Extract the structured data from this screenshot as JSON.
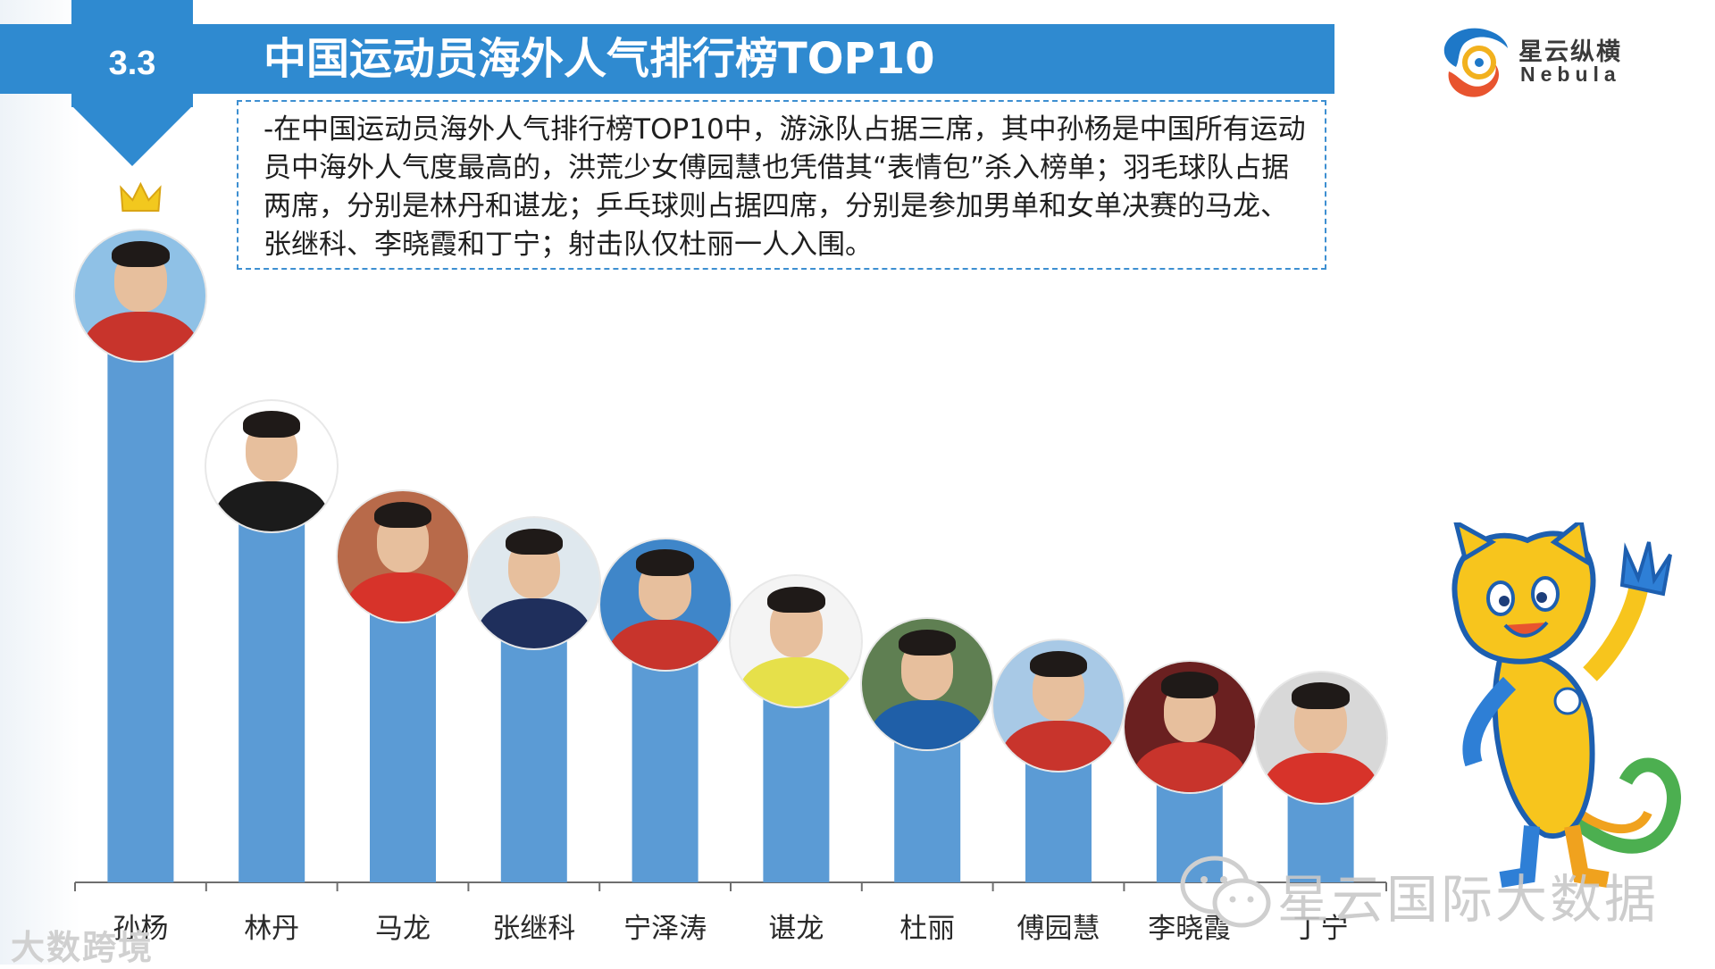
{
  "section": {
    "number": "3.3"
  },
  "title": "中国运动员海外人气排行榜TOP10",
  "description": "-在中国运动员海外人气排行榜TOP10中，游泳队占据三席，其中孙杨是中国所有运动员中海外人气度最高的，洪荒少女傅园慧也凭借其“表情包”杀入榜单；羽毛球队占据两席，分别是林丹和谌龙；乒乓球则占据四席，分别是参加男单和女单决赛的马龙、张继科、李晓霞和丁宁；射击队仅杜丽一人入围。",
  "logo": {
    "cn": "星云纵横",
    "en": "Nebula"
  },
  "watermark": {
    "main": "星云国际大数据",
    "corner": "大数跨境"
  },
  "colors": {
    "primary": "#2f8ad0",
    "bar": "#5b9bd5",
    "crown": "#f2c81e"
  },
  "icons": {
    "top_rank": "crown-icon",
    "mascot": "rio-mascot-icon",
    "social": "wechat-icon"
  },
  "chart_data": {
    "type": "bar",
    "title": "中国运动员海外人气排行榜TOP10",
    "categories": [
      "孙杨",
      "林丹",
      "马龙",
      "张继科",
      "宁泽涛",
      "谌龙",
      "杜丽",
      "傅园慧",
      "李晓霞",
      "丁宁"
    ],
    "values": [
      100,
      68,
      51,
      46,
      42,
      35,
      27,
      23,
      19,
      17
    ],
    "ylim": [
      0,
      100
    ],
    "yaxis_visible": false,
    "grid": false,
    "legend": "none"
  }
}
